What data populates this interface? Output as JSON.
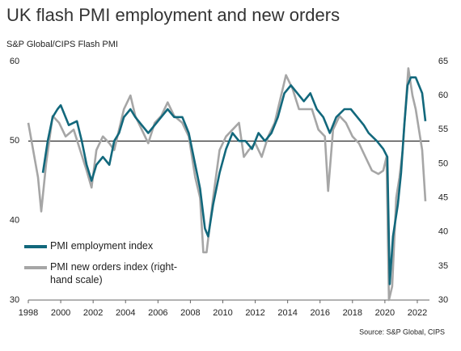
{
  "chart_data": {
    "type": "line",
    "title": "UK flash PMI employment and new orders",
    "subtitle": "S&P Global/CIPS Flash PMI",
    "source": "Source: S&P Global, CIPS",
    "xlim": [
      1998,
      2022.75
    ],
    "xticks": [
      1998,
      2000,
      2002,
      2004,
      2006,
      2008,
      2010,
      2012,
      2014,
      2016,
      2018,
      2020,
      2022
    ],
    "ylim": [
      30,
      60
    ],
    "yticks": [
      30,
      40,
      50,
      60
    ],
    "y2lim": [
      30,
      65
    ],
    "y2ticks": [
      30,
      35,
      40,
      45,
      50,
      55,
      60,
      65
    ],
    "reference_line": 50,
    "series": [
      {
        "name": "PMI employment index",
        "color": "#12687c",
        "axis": "y",
        "x": [
          1998.9,
          1999.2,
          1999.5,
          1999.8,
          2000.0,
          2000.5,
          2001.0,
          2001.3,
          2001.6,
          2001.9,
          2002.2,
          2002.6,
          2003.0,
          2003.3,
          2003.6,
          2003.9,
          2004.3,
          2004.6,
          2005.0,
          2005.4,
          2005.8,
          2006.2,
          2006.6,
          2007.0,
          2007.5,
          2007.9,
          2008.3,
          2008.6,
          2008.9,
          2009.1,
          2009.4,
          2009.8,
          2010.2,
          2010.6,
          2011.0,
          2011.4,
          2011.8,
          2012.2,
          2012.6,
          2013.0,
          2013.4,
          2013.8,
          2014.2,
          2014.6,
          2015.0,
          2015.4,
          2015.8,
          2016.2,
          2016.6,
          2017.0,
          2017.5,
          2017.9,
          2018.3,
          2018.7,
          2019.0,
          2019.5,
          2019.9,
          2020.15,
          2020.3,
          2020.5,
          2020.8,
          2021.0,
          2021.2,
          2021.4,
          2021.6,
          2021.9,
          2022.1,
          2022.3,
          2022.5
        ],
        "values": [
          46,
          50,
          53,
          54,
          54.5,
          52,
          52.5,
          50,
          47,
          45,
          47,
          48,
          47,
          50,
          51,
          53,
          54,
          53,
          52,
          51,
          52,
          53,
          54,
          53,
          53,
          51,
          47,
          44,
          39,
          38,
          42,
          46,
          49,
          51,
          50,
          50,
          49,
          51,
          50,
          51,
          53,
          56,
          57,
          56,
          55,
          56,
          54,
          53,
          51,
          53,
          54,
          54,
          53,
          52,
          51,
          50,
          49,
          48,
          32,
          38,
          42,
          46,
          52,
          57,
          58,
          58,
          57,
          56,
          52.5
        ]
      },
      {
        "name": "PMI new orders index (right-hand scale)",
        "color": "#a6a6a6",
        "axis": "y2",
        "x": [
          1998.0,
          1998.3,
          1998.6,
          1998.8,
          1999.1,
          1999.5,
          1999.9,
          2000.3,
          2000.8,
          2001.2,
          2001.6,
          2001.9,
          2002.2,
          2002.6,
          2003.0,
          2003.3,
          2003.6,
          2003.9,
          2004.3,
          2004.6,
          2005.0,
          2005.4,
          2005.8,
          2006.2,
          2006.6,
          2007.0,
          2007.5,
          2007.9,
          2008.3,
          2008.6,
          2008.8,
          2009.0,
          2009.4,
          2009.8,
          2010.2,
          2010.6,
          2011.0,
          2011.3,
          2011.6,
          2012.0,
          2012.4,
          2012.8,
          2013.2,
          2013.6,
          2013.9,
          2014.3,
          2014.7,
          2015.0,
          2015.5,
          2015.9,
          2016.3,
          2016.5,
          2016.8,
          2017.2,
          2017.6,
          2018.0,
          2018.4,
          2018.8,
          2019.2,
          2019.6,
          2019.9,
          2020.1,
          2020.25,
          2020.45,
          2020.7,
          2020.9,
          2021.1,
          2021.3,
          2021.45,
          2021.7,
          2021.9,
          2022.1,
          2022.3,
          2022.5
        ],
        "values": [
          56,
          52,
          48,
          43,
          50,
          57,
          56,
          54,
          55,
          52,
          49,
          46.5,
          52,
          54,
          53,
          52,
          55,
          58,
          60,
          57,
          55,
          53,
          56,
          57,
          59,
          57,
          56,
          54,
          48,
          45,
          37,
          37,
          45,
          52,
          54,
          55,
          56,
          51,
          52,
          53,
          51,
          54,
          56,
          60,
          63,
          61,
          58,
          58,
          58,
          55,
          54,
          46,
          55,
          57,
          56,
          54,
          53,
          51,
          49,
          48.5,
          49,
          51,
          30,
          32,
          45,
          48,
          52,
          59,
          64,
          60,
          58,
          55,
          52,
          44.5
        ]
      }
    ]
  }
}
